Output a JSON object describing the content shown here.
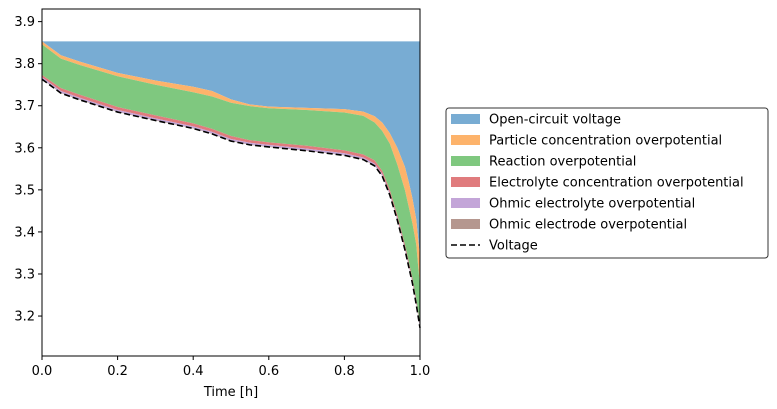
{
  "chart_data": {
    "type": "area",
    "title": "",
    "xlabel": "Time [h]",
    "ylabel": "",
    "xlim": [
      0.0,
      1.0
    ],
    "ylim": [
      3.105,
      3.93
    ],
    "x_ticks": [
      "0.0",
      "0.2",
      "0.4",
      "0.6",
      "0.8",
      "1.0"
    ],
    "y_ticks": [
      "3.2",
      "3.3",
      "3.4",
      "3.5",
      "3.6",
      "3.7",
      "3.8",
      "3.9"
    ],
    "x": [
      0.0,
      0.05,
      0.1,
      0.2,
      0.3,
      0.4,
      0.45,
      0.5,
      0.55,
      0.6,
      0.7,
      0.8,
      0.85,
      0.88,
      0.9,
      0.92,
      0.94,
      0.96,
      0.97,
      0.98,
      0.99,
      1.0
    ],
    "top_level": 3.853,
    "stacked_areas": [
      {
        "name": "Open-circuit voltage",
        "color": "#78acd3",
        "lower": [
          3.853,
          3.82,
          3.805,
          3.778,
          3.76,
          3.745,
          3.735,
          3.715,
          3.703,
          3.698,
          3.695,
          3.692,
          3.686,
          3.675,
          3.66,
          3.635,
          3.6,
          3.555,
          3.52,
          3.48,
          3.43,
          3.34
        ]
      },
      {
        "name": "Particle concentration overpotential",
        "color": "#fdb36b",
        "lower": [
          3.846,
          3.812,
          3.797,
          3.77,
          3.75,
          3.732,
          3.722,
          3.707,
          3.699,
          3.694,
          3.69,
          3.684,
          3.676,
          3.66,
          3.64,
          3.61,
          3.56,
          3.5,
          3.46,
          3.42,
          3.37,
          3.27
        ]
      },
      {
        "name": "Reaction overpotential",
        "color": "#7fc87f",
        "lower": [
          3.773,
          3.742,
          3.726,
          3.697,
          3.677,
          3.658,
          3.645,
          3.628,
          3.618,
          3.613,
          3.605,
          3.594,
          3.584,
          3.57,
          3.545,
          3.5,
          3.44,
          3.37,
          3.33,
          3.29,
          3.24,
          3.18
        ]
      },
      {
        "name": "Electrolyte concentration overpotential",
        "color": "#e07b7d",
        "lower": [
          3.768,
          3.735,
          3.719,
          3.69,
          3.67,
          3.651,
          3.638,
          3.621,
          3.612,
          3.607,
          3.598,
          3.587,
          3.577,
          3.562,
          3.538,
          3.493,
          3.433,
          3.363,
          3.323,
          3.283,
          3.233,
          3.176
        ]
      },
      {
        "name": "Ohmic electrolyte overpotential",
        "color": "#c3a5d8",
        "lower": [
          3.764,
          3.731,
          3.715,
          3.686,
          3.666,
          3.647,
          3.634,
          3.617,
          3.608,
          3.603,
          3.594,
          3.583,
          3.573,
          3.558,
          3.534,
          3.489,
          3.429,
          3.359,
          3.319,
          3.279,
          3.229,
          3.173
        ]
      },
      {
        "name": "Ohmic electrode overpotential",
        "color": "#b5978f",
        "lower": [
          3.763,
          3.73,
          3.714,
          3.685,
          3.665,
          3.646,
          3.633,
          3.616,
          3.607,
          3.602,
          3.593,
          3.582,
          3.572,
          3.557,
          3.533,
          3.488,
          3.428,
          3.358,
          3.318,
          3.278,
          3.228,
          3.172
        ]
      }
    ],
    "line": {
      "name": "Voltage",
      "style": "dashed",
      "color": "#000000",
      "values": [
        3.763,
        3.73,
        3.714,
        3.685,
        3.665,
        3.646,
        3.633,
        3.616,
        3.607,
        3.602,
        3.593,
        3.582,
        3.572,
        3.557,
        3.533,
        3.488,
        3.428,
        3.358,
        3.318,
        3.278,
        3.228,
        3.172
      ]
    },
    "legend_entries": [
      {
        "label": "Open-circuit voltage",
        "color": "#78acd3",
        "kind": "patch"
      },
      {
        "label": "Particle concentration overpotential",
        "color": "#fdb36b",
        "kind": "patch"
      },
      {
        "label": "Reaction overpotential",
        "color": "#7fc87f",
        "kind": "patch"
      },
      {
        "label": "Electrolyte concentration overpotential",
        "color": "#e07b7d",
        "kind": "patch"
      },
      {
        "label": "Ohmic electrolyte overpotential",
        "color": "#c3a5d8",
        "kind": "patch"
      },
      {
        "label": "Ohmic electrode overpotential",
        "color": "#b5978f",
        "kind": "patch"
      },
      {
        "label": "Voltage",
        "color": "#000000",
        "kind": "dashed-line"
      }
    ],
    "legend_position": "center-right, outside plot"
  }
}
